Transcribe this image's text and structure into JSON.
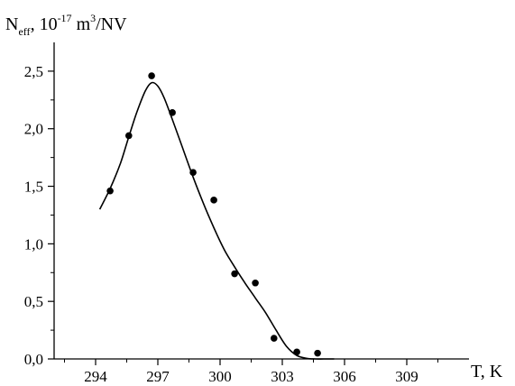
{
  "chart_data": {
    "type": "scatter",
    "ylabel": {
      "symbol": "N",
      "subscript": "eff",
      "sep": ", ",
      "unit_prefix": "10",
      "exp1": "-17",
      "unit_mid": " m",
      "exp2": "3",
      "unit_end": "/NV"
    },
    "xlabel": "T, K",
    "xlim": [
      292,
      312
    ],
    "ylim": [
      0,
      2.75
    ],
    "xticks": [
      294,
      297,
      300,
      303,
      306,
      309
    ],
    "xtick_labels": [
      "294",
      "297",
      "300",
      "303",
      "306",
      "309"
    ],
    "yticks": [
      0,
      0.5,
      1.0,
      1.5,
      2.0,
      2.5
    ],
    "ytick_labels": [
      "0,0",
      "0,5",
      "1,0",
      "1,5",
      "2,0",
      "2,5"
    ],
    "series": [
      {
        "kind": "points",
        "x": [
          294.7,
          295.6,
          296.7,
          297.7,
          298.7,
          299.7,
          300.7,
          301.7,
          302.6,
          303.7,
          304.7
        ],
        "y": [
          1.46,
          1.94,
          2.46,
          2.14,
          1.62,
          1.38,
          0.74,
          0.66,
          0.18,
          0.06,
          0.05
        ]
      },
      {
        "kind": "fit-curve",
        "x": [
          294.2,
          294.7,
          295.2,
          295.6,
          296.0,
          296.4,
          296.7,
          297.0,
          297.3,
          297.7,
          298.2,
          298.7,
          299.2,
          299.7,
          300.2,
          300.7,
          301.2,
          301.7,
          302.2,
          302.7,
          303.2,
          303.7,
          304.2,
          304.6,
          305.0,
          305.5
        ],
        "y": [
          1.3,
          1.48,
          1.7,
          1.93,
          2.15,
          2.33,
          2.4,
          2.37,
          2.27,
          2.08,
          1.83,
          1.58,
          1.35,
          1.14,
          0.95,
          0.8,
          0.66,
          0.53,
          0.4,
          0.25,
          0.11,
          0.03,
          0.005,
          0.0,
          0.0,
          0.0
        ]
      }
    ]
  }
}
